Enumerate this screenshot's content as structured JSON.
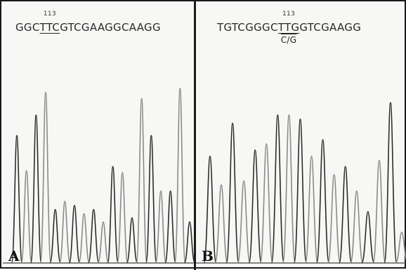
{
  "panels": [
    {
      "label": "A",
      "sequence": {
        "before": "GGC",
        "codon": "TTC",
        "after": "GTCGAAGGCAAGG"
      },
      "position_label": "113",
      "variant_label": "",
      "peaks": [
        [
          0.62,
          0.45,
          0.72,
          0.83,
          0.26,
          0.3,
          0.28,
          0.24,
          0.26,
          0.2,
          0.47,
          0.44,
          0.22,
          0.8,
          0.62,
          0.35,
          0.35,
          0.85,
          0.2
        ]
      ]
    },
    {
      "label": "B",
      "sequence": {
        "before": "TGTCGGGC",
        "codon": "TTG",
        "after": "GTCGAAGG"
      },
      "position_label": "113",
      "variant_label": "C/G",
      "peaks": [
        [
          0.52,
          0.38,
          0.68,
          0.4,
          0.55,
          0.58,
          0.72,
          0.72,
          0.7,
          0.52,
          0.6,
          0.43,
          0.47,
          0.35,
          0.25,
          0.5,
          0.78,
          0.15
        ]
      ]
    }
  ]
}
